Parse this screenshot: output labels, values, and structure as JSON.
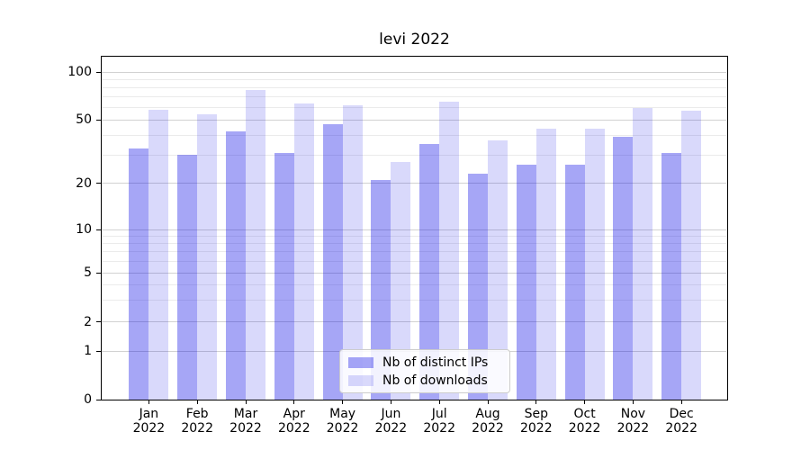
{
  "title": "levi 2022",
  "chart_data": {
    "type": "bar",
    "title": "levi 2022",
    "categories": [
      "Jan 2022",
      "Feb 2022",
      "Mar 2022",
      "Apr 2022",
      "May 2022",
      "Jun 2022",
      "Jul 2022",
      "Aug 2022",
      "Sep 2022",
      "Oct 2022",
      "Nov 2022",
      "Dec 2022"
    ],
    "series": [
      {
        "name": "Nb of distinct IPs",
        "color": "rgba(0,0,230,0.35)",
        "values": [
          33,
          30,
          42,
          31,
          47,
          21,
          35,
          23,
          26,
          26,
          39,
          31
        ]
      },
      {
        "name": "Nb of downloads",
        "color": "rgba(0,0,230,0.15)",
        "values": [
          58,
          54,
          77,
          63,
          62,
          27,
          65,
          37,
          44,
          44,
          59,
          57
        ]
      }
    ],
    "xlabel": "",
    "ylabel": "",
    "y_axis": {
      "scale": "symlog",
      "major_ticks": [
        100,
        50,
        20,
        10,
        5,
        2,
        1,
        0
      ],
      "minor_ticks": [
        90,
        80,
        70,
        60,
        40,
        30,
        9,
        8,
        7,
        6,
        4,
        3
      ],
      "ylim": [
        0,
        125
      ]
    },
    "grid": true,
    "legend": {
      "position": "lower center",
      "entries": [
        "Nb of distinct IPs",
        "Nb of downloads"
      ]
    }
  },
  "colors": {
    "grid_major": "#d2d2d2",
    "grid_minor": "#ebebeb",
    "spine": "#000000",
    "text": "#000000",
    "legend_border": "#cccccc",
    "legend_bg": "rgba(255,255,255,0.85)"
  }
}
